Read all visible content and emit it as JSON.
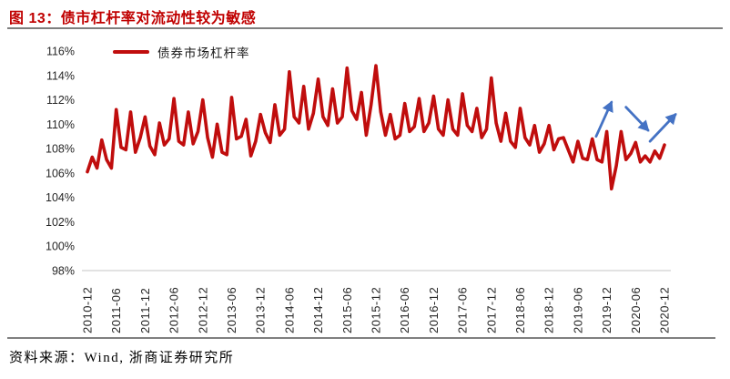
{
  "figure": {
    "title": "图 13：债市杠杆率对流动性较为敏感",
    "source": "资料来源：Wind, 浙商证券研究所"
  },
  "colors": {
    "title_red": "#C00000",
    "line_red": "#C00D0D",
    "arrow_blue": "#4472C4",
    "axis_line_gray": "#D9D9D9",
    "rule_gray": "#7f7f7f"
  },
  "chart_data": {
    "type": "line",
    "title": "",
    "legend": [
      "债券市场杠杆率"
    ],
    "legend_position": "top-left",
    "grid": false,
    "ylim": [
      98,
      116
    ],
    "yticks": [
      116,
      114,
      112,
      110,
      108,
      106,
      104,
      102,
      100,
      98
    ],
    "ytick_suffix": "%",
    "x_frequency": "monthly",
    "x_start": "2010-12",
    "x_end": "2020-12",
    "x_tick_every_n_points": 6,
    "x_tick_labels": [
      "2010-12",
      "2011-06",
      "2011-12",
      "2012-06",
      "2012-12",
      "2013-06",
      "2013-12",
      "2014-06",
      "2014-12",
      "2015-06",
      "2015-12",
      "2016-06",
      "2016-12",
      "2017-06",
      "2017-12",
      "2018-06",
      "2018-12",
      "2019-06",
      "2019-12",
      "2020-06",
      "2020-12"
    ],
    "series": [
      {
        "name": "债券市场杠杆率",
        "values": [
          106.1,
          107.3,
          106.4,
          108.7,
          107.1,
          106.4,
          111.2,
          108.1,
          107.9,
          111.0,
          107.7,
          108.9,
          110.6,
          108.2,
          107.5,
          110.1,
          108.3,
          108.8,
          112.1,
          108.6,
          108.3,
          111.0,
          108.4,
          109.4,
          112.0,
          108.9,
          107.3,
          110.0,
          107.7,
          107.5,
          112.2,
          108.8,
          109.0,
          110.4,
          107.4,
          108.6,
          110.8,
          109.3,
          108.5,
          111.6,
          109.1,
          109.6,
          114.3,
          110.6,
          110.1,
          113.1,
          109.6,
          110.9,
          113.7,
          110.6,
          109.9,
          112.9,
          110.1,
          110.6,
          114.6,
          111.1,
          110.4,
          112.6,
          109.1,
          111.6,
          114.8,
          111.0,
          109.1,
          110.8,
          108.8,
          109.1,
          111.7,
          109.4,
          109.8,
          112.1,
          109.4,
          110.1,
          112.3,
          109.6,
          109.1,
          112.0,
          109.6,
          109.1,
          112.5,
          109.9,
          109.4,
          111.3,
          108.9,
          109.6,
          113.8,
          110.1,
          108.6,
          110.9,
          108.6,
          108.1,
          111.3,
          108.9,
          108.3,
          109.9,
          107.7,
          108.4,
          109.9,
          107.9,
          108.8,
          108.9,
          107.9,
          106.9,
          108.6,
          107.2,
          107.1,
          108.8,
          107.1,
          106.9,
          109.4,
          104.7,
          106.6,
          109.4,
          107.1,
          107.6,
          108.5,
          106.9,
          107.4,
          106.9,
          107.8,
          107.2,
          108.3
        ]
      }
    ],
    "annotations": [
      {
        "type": "arrow",
        "direction": "up",
        "from": [
          105.8,
          109.0
        ],
        "to": [
          109.0,
          111.8
        ]
      },
      {
        "type": "arrow",
        "direction": "down",
        "from": [
          112.0,
          111.4
        ],
        "to": [
          116.6,
          109.5
        ]
      },
      {
        "type": "arrow",
        "direction": "up",
        "from": [
          117.0,
          108.6
        ],
        "to": [
          122.3,
          110.8
        ]
      }
    ]
  }
}
